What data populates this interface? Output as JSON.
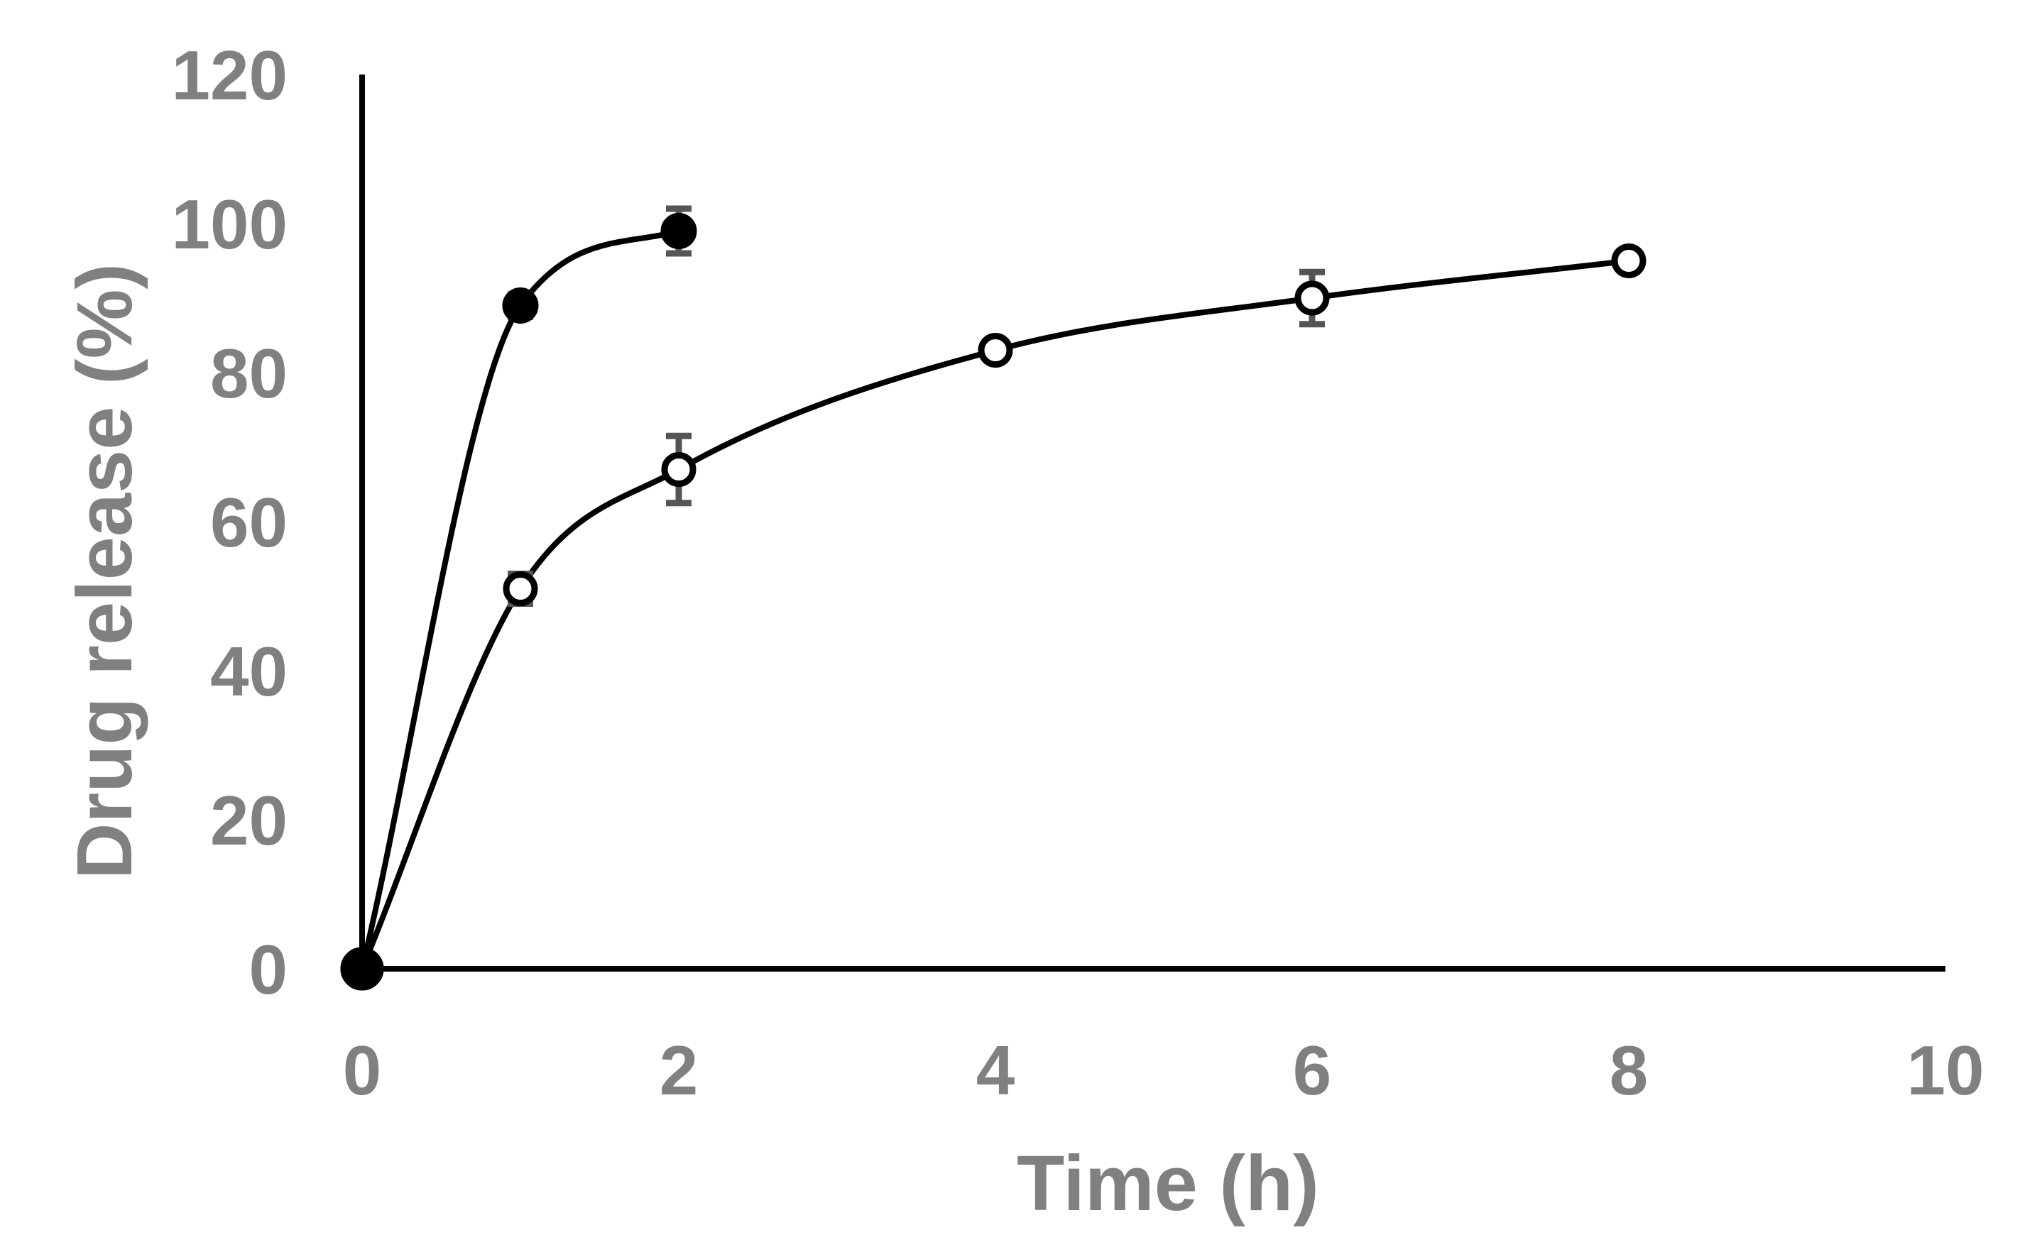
{
  "chart_data": {
    "type": "line",
    "title": "",
    "xlabel": "Time (h)",
    "ylabel": "Drug release (%)",
    "xlim": [
      0,
      10
    ],
    "ylim": [
      0,
      120
    ],
    "xticks": [
      0,
      2,
      4,
      6,
      8,
      10
    ],
    "yticks": [
      0,
      20,
      40,
      60,
      80,
      100,
      120
    ],
    "grid": false,
    "legend": "none",
    "colors": {
      "axis": "#000000",
      "tick_text": "#808080",
      "error_bar": "#555555",
      "marker_fill_filled": "#000000",
      "marker_fill_open": "#ffffff"
    },
    "series": [
      {
        "name": "filled-circle series",
        "marker": "filled-circle",
        "x": [
          0,
          1,
          2
        ],
        "y": [
          0,
          89,
          99
        ],
        "err": [
          0,
          1.5,
          3
        ]
      },
      {
        "name": "open-circle series",
        "marker": "open-circle",
        "x": [
          0,
          1,
          2,
          4,
          6,
          8
        ],
        "y": [
          0,
          51,
          67,
          83,
          90,
          95
        ],
        "err": [
          0,
          2,
          4.5,
          1,
          3.5,
          1
        ]
      }
    ]
  }
}
